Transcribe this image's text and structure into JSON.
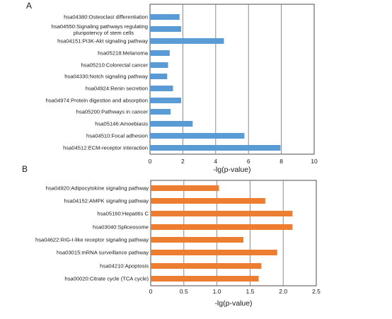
{
  "chart_data": [
    {
      "panel_label": "A",
      "type": "bar",
      "orientation": "horizontal",
      "xlabel": "-lg(p-value)",
      "xlim": [
        0,
        10
      ],
      "xticks": [
        "0",
        "2",
        "4",
        "6",
        "8",
        "10"
      ],
      "grid": true,
      "color": "#5b9bd5",
      "categories": [
        "hsa04380:Osteoclast differentiation",
        "hsa04550:Signaling pathways regulating pluripotency of stem cells",
        "hsa04151:PI3K-Akt signaling pathway",
        "hsa05218:Melanoma",
        "hsa05210:Colorectal cancer",
        "hsa04330:Notch signaling pathway",
        "hsa04924:Renin secretion",
        "hsa04974:Protein digestion and absorption",
        "hsa05200:Pathways in cancer",
        "hsa05146:Amoebiasis",
        "hsa04510:Focal adhesion",
        "hsa04512:ECM-receptor interaction"
      ],
      "values": [
        1.8,
        1.9,
        4.5,
        1.2,
        1.1,
        1.05,
        1.4,
        1.9,
        1.25,
        2.6,
        5.75,
        7.95
      ]
    },
    {
      "panel_label": "B",
      "type": "bar",
      "orientation": "horizontal",
      "xlabel": "-lg(p-value)",
      "xlim": [
        0,
        2.5
      ],
      "xticks": [
        "0",
        "0.5",
        "1.0",
        "1.5",
        "2.0",
        "2.5"
      ],
      "grid": true,
      "color": "#ed7d31",
      "categories": [
        "hsa04920:Adipocytokine signaling pathway",
        "hsa04152:AMPK signaling pathway",
        "hsa05160:Hepatitis C",
        "hsa03040:Spliceosome",
        "hsa04622:RIG-I-like receptor signaling pathway",
        "hsa03015:mRNA surveillance pathway",
        "hsa04210:Apoptosis",
        "hsa00020:Citrate cycle (TCA cycle)"
      ],
      "values": [
        1.03,
        1.73,
        2.14,
        2.14,
        1.4,
        1.91,
        1.67,
        1.63
      ]
    }
  ]
}
